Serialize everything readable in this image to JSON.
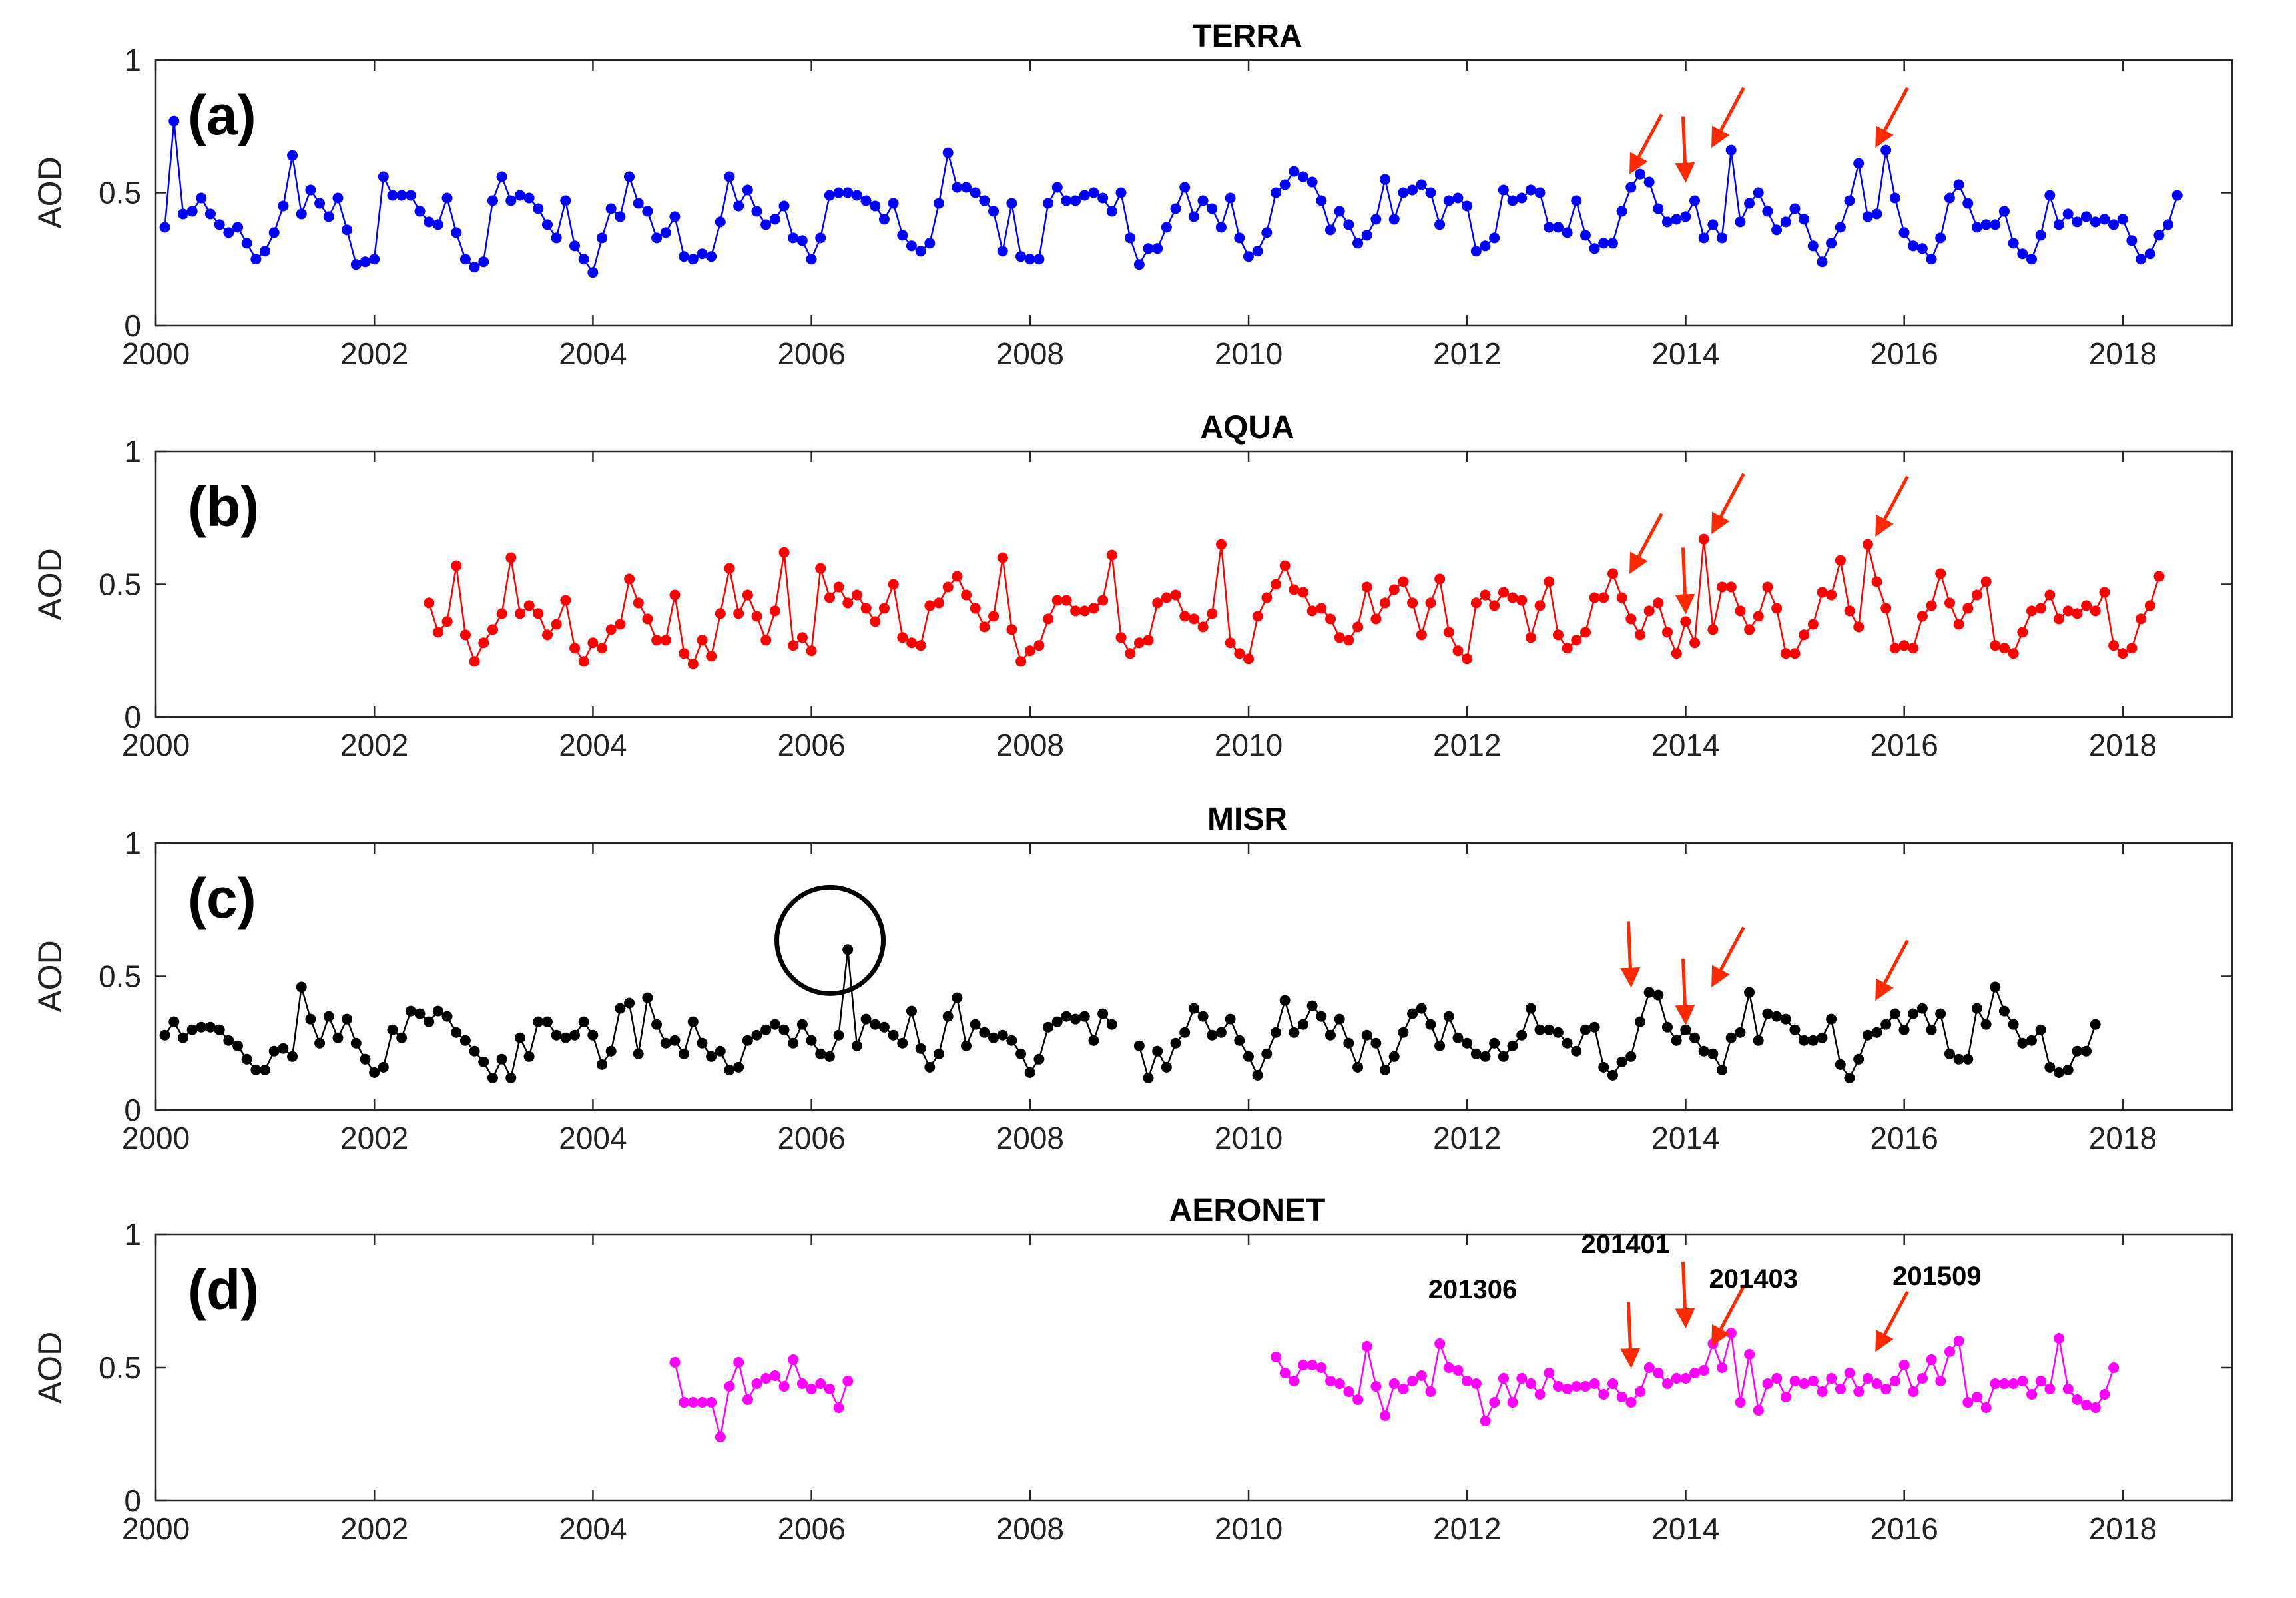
{
  "chart_data": [
    {
      "type": "line",
      "panel_label": "(a)",
      "title": "TERRA",
      "ylabel": "AOD",
      "xlabel": "",
      "xlim": [
        2000,
        2019
      ],
      "ylim": [
        0,
        1
      ],
      "x_ticks": [
        "2000",
        "2002",
        "2004",
        "2006",
        "2008",
        "2010",
        "2012",
        "2014",
        "2016",
        "2018"
      ],
      "y_ticks": [
        "0",
        "0.5",
        "1"
      ],
      "color": "#0000ff",
      "series": [
        {
          "name": "TERRA",
          "start": 2000.083,
          "step": 0.08333,
          "values": [
            0.37,
            0.77,
            0.42,
            0.43,
            0.48,
            0.42,
            0.38,
            0.35,
            0.37,
            0.31,
            0.25,
            0.28,
            0.35,
            0.45,
            0.64,
            0.42,
            0.51,
            0.46,
            0.41,
            0.48,
            0.36,
            0.23,
            0.24,
            0.25,
            0.56,
            0.49,
            0.49,
            0.49,
            0.43,
            0.39,
            0.38,
            0.48,
            0.35,
            0.25,
            0.22,
            0.24,
            0.47,
            0.56,
            0.47,
            0.49,
            0.48,
            0.44,
            0.38,
            0.33,
            0.47,
            0.3,
            0.25,
            0.2,
            0.33,
            0.44,
            0.41,
            0.56,
            0.46,
            0.43,
            0.33,
            0.35,
            0.41,
            0.26,
            0.25,
            0.27,
            0.26,
            0.39,
            0.56,
            0.45,
            0.51,
            0.43,
            0.38,
            0.4,
            0.45,
            0.33,
            0.32,
            0.25,
            0.33,
            0.49,
            0.5,
            0.5,
            0.49,
            0.47,
            0.45,
            0.4,
            0.46,
            0.34,
            0.3,
            0.28,
            0.31,
            0.46,
            0.65,
            0.52,
            0.52,
            0.5,
            0.47,
            0.43,
            0.28,
            0.46,
            0.26,
            0.25,
            0.25,
            0.46,
            0.52,
            0.47,
            0.47,
            0.49,
            0.5,
            0.48,
            0.43,
            0.5,
            0.33,
            0.23,
            0.29,
            0.29,
            0.37,
            0.44,
            0.52,
            0.41,
            0.47,
            0.44,
            0.37,
            0.48,
            0.33,
            0.26,
            0.28,
            0.35,
            0.5,
            0.53,
            0.58,
            0.56,
            0.54,
            0.47,
            0.36,
            0.43,
            0.38,
            0.31,
            0.34,
            0.4,
            0.55,
            0.4,
            0.5,
            0.51,
            0.53,
            0.5,
            0.38,
            0.47,
            0.48,
            0.45,
            0.28,
            0.3,
            0.33,
            0.51,
            0.47,
            0.48,
            0.51,
            0.5,
            0.37,
            0.37,
            0.35,
            0.47,
            0.34,
            0.29,
            0.31,
            0.31,
            0.43,
            0.52,
            0.57,
            0.54,
            0.44,
            0.39,
            0.4,
            0.41,
            0.47,
            0.33,
            0.38,
            0.33,
            0.66,
            0.39,
            0.46,
            0.5,
            0.43,
            0.36,
            0.39,
            0.44,
            0.4,
            0.3,
            0.24,
            0.31,
            0.37,
            0.47,
            0.61,
            0.41,
            0.42,
            0.66,
            0.48,
            0.35,
            0.3,
            0.29,
            0.25,
            0.33,
            0.48,
            0.53,
            0.46,
            0.37,
            0.38,
            0.38,
            0.43,
            0.31,
            0.27,
            0.25,
            0.34,
            0.49,
            0.38,
            0.42,
            0.39,
            0.41,
            0.39,
            0.4,
            0.38,
            0.4,
            0.32,
            0.25,
            0.27,
            0.34,
            0.38,
            0.49
          ]
        }
      ]
    },
    {
      "type": "line",
      "panel_label": "(b)",
      "title": "AQUA",
      "ylabel": "AOD",
      "xlabel": "",
      "xlim": [
        2000,
        2019
      ],
      "ylim": [
        0,
        1
      ],
      "x_ticks": [
        "2000",
        "2002",
        "2004",
        "2006",
        "2008",
        "2010",
        "2012",
        "2014",
        "2016",
        "2018"
      ],
      "y_ticks": [
        "0",
        "0.5",
        "1"
      ],
      "color": "#ff0000",
      "series": [
        {
          "name": "AQUA",
          "start": 2002.5,
          "step": 0.08333,
          "values": [
            0.43,
            0.32,
            0.36,
            0.57,
            0.31,
            0.21,
            0.28,
            0.33,
            0.39,
            0.6,
            0.39,
            0.42,
            0.39,
            0.31,
            0.35,
            0.44,
            0.26,
            0.21,
            0.28,
            0.26,
            0.33,
            0.35,
            0.52,
            0.43,
            0.37,
            0.29,
            0.29,
            0.46,
            0.24,
            0.2,
            0.29,
            0.23,
            0.39,
            0.56,
            0.39,
            0.46,
            0.38,
            0.29,
            0.4,
            0.62,
            0.27,
            0.3,
            0.25,
            0.56,
            0.45,
            0.49,
            0.43,
            0.46,
            0.41,
            0.36,
            0.41,
            0.5,
            0.3,
            0.28,
            0.27,
            0.42,
            0.43,
            0.49,
            0.53,
            0.46,
            0.41,
            0.34,
            0.38,
            0.6,
            0.33,
            0.21,
            0.25,
            0.27,
            0.37,
            0.44,
            0.44,
            0.4,
            0.4,
            0.41,
            0.44,
            0.61,
            0.3,
            0.24,
            0.28,
            0.29,
            0.43,
            0.45,
            0.46,
            0.38,
            0.37,
            0.34,
            0.39,
            0.65,
            0.28,
            0.24,
            0.22,
            0.38,
            0.45,
            0.5,
            0.57,
            0.48,
            0.47,
            0.4,
            0.41,
            0.37,
            0.3,
            0.29,
            0.34,
            0.49,
            0.37,
            0.43,
            0.48,
            0.51,
            0.43,
            0.31,
            0.43,
            0.52,
            0.32,
            0.25,
            0.22,
            0.43,
            0.46,
            0.42,
            0.47,
            0.45,
            0.44,
            0.3,
            0.42,
            0.51,
            0.31,
            0.26,
            0.29,
            0.32,
            0.45,
            0.45,
            0.54,
            0.45,
            0.37,
            0.31,
            0.4,
            0.43,
            0.32,
            0.24,
            0.36,
            0.28,
            0.67,
            0.33,
            0.49,
            0.49,
            0.4,
            0.33,
            0.38,
            0.49,
            0.41,
            0.24,
            0.24,
            0.31,
            0.35,
            0.47,
            0.46,
            0.59,
            0.4,
            0.34,
            0.65,
            0.51,
            0.41,
            0.26,
            0.27,
            0.26,
            0.38,
            0.42,
            0.54,
            0.43,
            0.35,
            0.41,
            0.46,
            0.51,
            0.27,
            0.26,
            0.24,
            0.32,
            0.4,
            0.41,
            0.46,
            0.37,
            0.4,
            0.39,
            0.42,
            0.4,
            0.47,
            0.27,
            0.24,
            0.26,
            0.37,
            0.42,
            0.53
          ]
        }
      ]
    },
    {
      "type": "line",
      "panel_label": "(c)",
      "title": "MISR",
      "ylabel": "AOD",
      "xlabel": "",
      "xlim": [
        2000,
        2019
      ],
      "ylim": [
        0,
        1
      ],
      "x_ticks": [
        "2000",
        "2002",
        "2004",
        "2006",
        "2008",
        "2010",
        "2012",
        "2014",
        "2016",
        "2018"
      ],
      "y_ticks": [
        "0",
        "0.5",
        "1"
      ],
      "color": "#000000",
      "series": [
        {
          "name": "MISR",
          "start": 2000.083,
          "step": 0.08333,
          "values": [
            0.28,
            0.33,
            0.27,
            0.3,
            0.31,
            0.31,
            0.3,
            0.26,
            0.24,
            0.19,
            0.15,
            0.15,
            0.22,
            0.23,
            0.2,
            0.46,
            0.34,
            0.25,
            0.35,
            0.27,
            0.34,
            0.25,
            0.19,
            0.14,
            0.16,
            0.3,
            0.27,
            0.37,
            0.36,
            0.33,
            0.37,
            0.35,
            0.29,
            0.26,
            0.22,
            0.18,
            0.12,
            0.19,
            0.12,
            0.27,
            0.2,
            0.33,
            0.33,
            0.28,
            0.27,
            0.28,
            0.33,
            0.28,
            0.17,
            0.22,
            0.38,
            0.4,
            0.21,
            0.42,
            0.32,
            0.25,
            0.26,
            0.21,
            0.33,
            0.25,
            0.2,
            0.22,
            0.15,
            0.16,
            0.26,
            0.28,
            0.3,
            0.32,
            0.3,
            0.25,
            0.32,
            0.26,
            0.21,
            0.2,
            0.28,
            0.6,
            0.24,
            0.34,
            0.32,
            0.31,
            0.28,
            0.25,
            0.37,
            0.23,
            0.16,
            0.21,
            0.35,
            0.42,
            0.24,
            0.32,
            0.29,
            0.27,
            0.28,
            0.26,
            0.21,
            0.14,
            0.19,
            0.31,
            0.33,
            0.35,
            0.34,
            0.35,
            0.26,
            0.36,
            0.32,
            null,
            null,
            0.24,
            0.12,
            0.22,
            0.16,
            0.25,
            0.29,
            0.38,
            0.35,
            0.28,
            0.29,
            0.34,
            0.26,
            0.2,
            0.13,
            0.21,
            0.29,
            0.41,
            0.29,
            0.32,
            0.39,
            0.35,
            0.28,
            0.34,
            0.25,
            0.16,
            0.28,
            0.25,
            0.15,
            0.2,
            0.29,
            0.36,
            0.38,
            0.32,
            0.24,
            0.35,
            0.27,
            0.25,
            0.21,
            0.2,
            0.25,
            0.2,
            0.24,
            0.28,
            0.38,
            0.3,
            0.3,
            0.29,
            0.25,
            0.22,
            0.3,
            0.31,
            0.16,
            0.13,
            0.18,
            0.2,
            0.33,
            0.44,
            0.43,
            0.31,
            0.26,
            0.3,
            0.27,
            0.22,
            0.21,
            0.15,
            0.27,
            0.29,
            0.44,
            0.26,
            0.36,
            0.35,
            0.34,
            0.3,
            0.26,
            0.26,
            0.27,
            0.34,
            0.17,
            0.12,
            0.19,
            0.28,
            0.29,
            0.32,
            0.36,
            0.3,
            0.36,
            0.38,
            0.3,
            0.36,
            0.21,
            0.19,
            0.19,
            0.38,
            0.32,
            0.46,
            0.37,
            0.32,
            0.25,
            0.26,
            0.3,
            0.16,
            0.14,
            0.15,
            0.22,
            0.22,
            0.32
          ]
        }
      ]
    },
    {
      "type": "line",
      "panel_label": "(d)",
      "title": "AERONET",
      "ylabel": "AOD",
      "xlabel": "",
      "xlim": [
        2000,
        2019
      ],
      "ylim": [
        0,
        1
      ],
      "x_ticks": [
        "2000",
        "2002",
        "2004",
        "2006",
        "2008",
        "2010",
        "2012",
        "2014",
        "2016",
        "2018"
      ],
      "y_ticks": [
        "0",
        "0.5",
        "1"
      ],
      "color": "#ff00ff",
      "series": [
        {
          "name": "AERONET-1",
          "start": 2004.75,
          "step": 0.08333,
          "values": [
            0.52,
            0.37,
            0.37,
            0.37,
            0.37,
            0.24,
            0.43,
            0.52,
            0.38,
            0.44,
            0.46,
            0.47,
            0.43,
            0.53,
            0.44,
            0.42,
            0.44,
            0.42,
            0.35,
            0.45
          ]
        },
        {
          "name": "AERONET-2",
          "start": 2010.25,
          "step": 0.08333,
          "values": [
            0.54,
            0.48,
            0.45,
            0.51,
            0.51,
            0.5,
            0.45,
            0.44,
            0.41,
            0.38,
            0.58,
            0.43,
            0.32,
            0.44,
            0.42,
            0.45,
            0.47,
            0.41,
            0.59,
            0.5,
            0.49,
            0.45,
            0.44,
            0.3,
            0.37,
            0.46,
            0.37,
            0.46,
            0.44,
            0.4,
            0.48,
            0.43,
            0.42,
            0.43,
            0.43,
            0.44,
            0.4,
            0.44,
            0.39,
            0.37,
            0.41,
            0.5,
            0.48,
            0.44,
            0.46,
            0.46,
            0.48,
            0.49,
            0.59,
            0.5,
            0.63,
            0.37,
            0.55,
            0.34,
            0.44,
            0.46,
            0.39,
            0.45,
            0.44,
            0.45,
            0.41,
            0.46,
            0.42,
            0.48,
            0.41,
            0.46,
            0.44,
            0.42,
            0.45,
            0.51,
            0.41,
            0.46,
            0.53,
            0.45,
            0.56,
            0.6,
            0.37,
            0.39,
            0.35,
            0.44,
            0.44,
            0.44,
            0.45,
            0.4,
            0.45,
            0.42,
            0.61,
            0.42,
            0.38,
            0.36,
            0.35,
            0.4,
            0.5
          ]
        }
      ],
      "annotations": [
        "201306",
        "201401",
        "201403",
        "201509"
      ]
    }
  ]
}
